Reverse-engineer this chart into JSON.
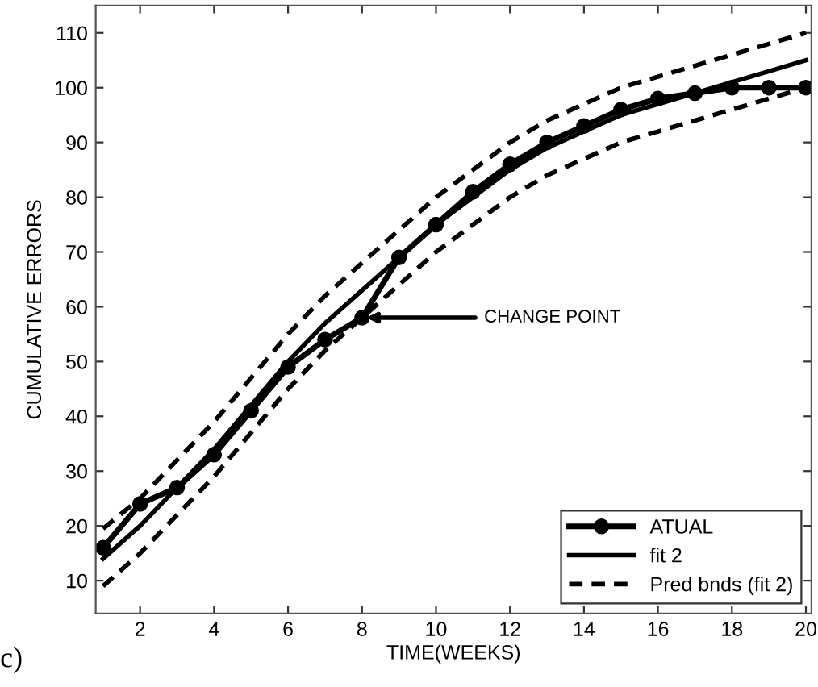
{
  "chart_data": {
    "type": "line",
    "xlabel": "TIME(WEEKS)",
    "ylabel": "CUMULATIVE ERRORS",
    "x": [
      1,
      2,
      3,
      4,
      5,
      6,
      7,
      8,
      9,
      10,
      11,
      12,
      13,
      14,
      15,
      16,
      17,
      18,
      19,
      20
    ],
    "series": [
      {
        "name": "ATUAL",
        "color": "#000000",
        "marker": "circle",
        "line_style": "solid",
        "values": [
          16,
          24,
          27,
          33,
          41,
          49,
          54,
          58,
          69,
          75,
          81,
          86,
          90,
          93,
          96,
          98,
          99,
          100,
          100,
          100
        ]
      },
      {
        "name": "fit 2",
        "color": "#000000",
        "marker": "none",
        "line_style": "solid",
        "values": [
          14,
          20,
          27,
          34,
          42,
          50,
          57,
          63,
          69,
          75,
          80,
          85,
          89,
          92,
          95,
          97,
          99,
          101,
          103,
          105
        ]
      },
      {
        "name": "Pred bnds (fit 2)",
        "color": "#000000",
        "marker": "none",
        "line_style": "dashed",
        "values": [
          19.5,
          25,
          32,
          39,
          47,
          55,
          62,
          68,
          74,
          80,
          85,
          90,
          94,
          97,
          100,
          102,
          104,
          106,
          108,
          110
        ]
      },
      {
        "color": "#000000",
        "marker": "none",
        "line_style": "dashed",
        "values": [
          9,
          15,
          22,
          29,
          37,
          45,
          52,
          58,
          64,
          70,
          75,
          80,
          84,
          87,
          90,
          92,
          94,
          96,
          98,
          100
        ]
      }
    ],
    "xlim": [
      0.8,
      20.15
    ],
    "ylim": [
      4,
      115
    ],
    "xticks": [
      2,
      4,
      6,
      8,
      10,
      12,
      14,
      16,
      18,
      20
    ],
    "yticks": [
      10,
      20,
      30,
      40,
      50,
      60,
      70,
      80,
      90,
      100,
      110
    ],
    "grid": false,
    "legend": "bottom right",
    "annotations": [
      {
        "text": "CHANGE POINT",
        "x": 8,
        "y": 58
      },
      "c)"
    ]
  }
}
